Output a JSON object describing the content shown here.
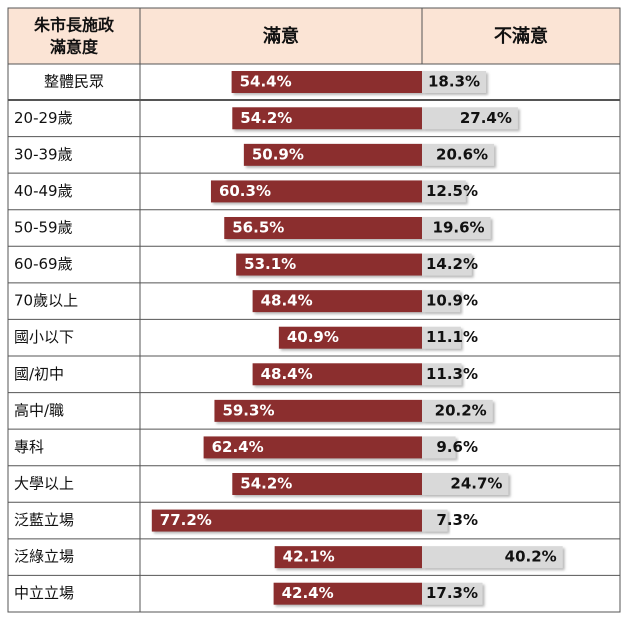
{
  "chart_data": {
    "type": "diverging_bar",
    "corner_header": [
      "朱市長施政",
      "滿意度"
    ],
    "categories": [
      "整體民眾",
      "20-29歲",
      "30-39歲",
      "40-49歲",
      "50-59歲",
      "60-69歲",
      "70歲以上",
      "國小以下",
      "國/初中",
      "高中/職",
      "專科",
      "大學以上",
      "泛藍立場",
      "泛綠立場",
      "中立立場"
    ],
    "series": [
      {
        "name": "滿意",
        "color": "#8b2f2f",
        "values": [
          54.4,
          54.2,
          50.9,
          60.3,
          56.5,
          53.1,
          48.4,
          40.9,
          48.4,
          59.3,
          62.4,
          54.2,
          77.2,
          42.1,
          42.4
        ],
        "value_labels": [
          "54.4%",
          "54.2%",
          "50.9%",
          "60.3%",
          "56.5%",
          "53.1%",
          "48.4%",
          "40.9%",
          "48.4%",
          "59.3%",
          "62.4%",
          "54.2%",
          "77.2%",
          "42.1%",
          "42.4%"
        ]
      },
      {
        "name": "不滿意",
        "color": "#d9d9d9",
        "values": [
          18.3,
          27.4,
          20.6,
          12.5,
          19.6,
          14.2,
          10.9,
          11.1,
          11.3,
          20.2,
          9.6,
          24.7,
          7.3,
          40.2,
          17.3
        ],
        "value_labels": [
          "18.3%",
          "27.4%",
          "20.6%",
          "12.5%",
          "19.6%",
          "14.2%",
          "10.9%",
          "11.1%",
          "11.3%",
          "20.2%",
          "9.6%",
          "24.7%",
          "7.3%",
          "40.2%",
          "17.3%"
        ]
      }
    ]
  }
}
